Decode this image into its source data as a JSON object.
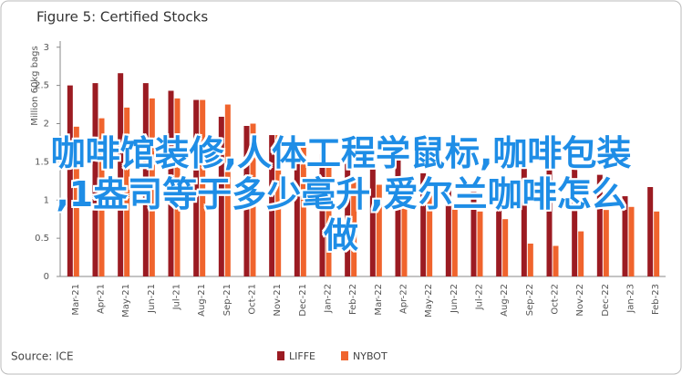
{
  "chart_data": {
    "type": "bar",
    "title": "Figure 5: Certified Stocks",
    "ylabel": "Million 60kg bags",
    "source": "Source: ICE",
    "categories": [
      "Mar-21",
      "Apr-21",
      "May-21",
      "Jun-21",
      "Jul-21",
      "Aug-21",
      "Sep-21",
      "Oct-21",
      "Nov-21",
      "Dec-21",
      "Jan-22",
      "Feb-22",
      "Mar-22",
      "Apr-22",
      "May-22",
      "Jun-22",
      "Jul-22",
      "Aug-22",
      "Sep-22",
      "Oct-22",
      "Nov-22",
      "Dec-22",
      "Jan-23",
      "Feb-23"
    ],
    "series": [
      {
        "name": "LIFFE",
        "color": "#9b1b22",
        "values": [
          2.5,
          2.53,
          2.66,
          2.53,
          2.43,
          2.31,
          2.09,
          1.97,
          1.85,
          1.75,
          1.6,
          1.5,
          1.4,
          1.58,
          1.35,
          1.2,
          1.11,
          1.1,
          1.53,
          1.49,
          1.41,
          1.33,
          1.05,
          1.17
        ]
      },
      {
        "name": "NYBOT",
        "color": "#f0642d",
        "values": [
          1.96,
          2.07,
          2.21,
          2.33,
          2.33,
          2.31,
          2.25,
          2.0,
          1.85,
          1.75,
          1.5,
          1.3,
          1.2,
          1.15,
          1.1,
          0.95,
          0.85,
          0.75,
          0.43,
          0.4,
          0.59,
          0.87,
          0.91,
          0.85
        ]
      }
    ],
    "ylim": [
      0,
      3.2
    ],
    "yticks": [
      0,
      0.5,
      1,
      1.5,
      2,
      2.5,
      3
    ],
    "grid": false,
    "legend": "bottom"
  },
  "overlay_text": [
    "咖啡馆装修,人体工程学鼠标,咖啡包装",
    ",1盎司等于多少毫升,爱尔兰咖啡怎么",
    "做"
  ]
}
